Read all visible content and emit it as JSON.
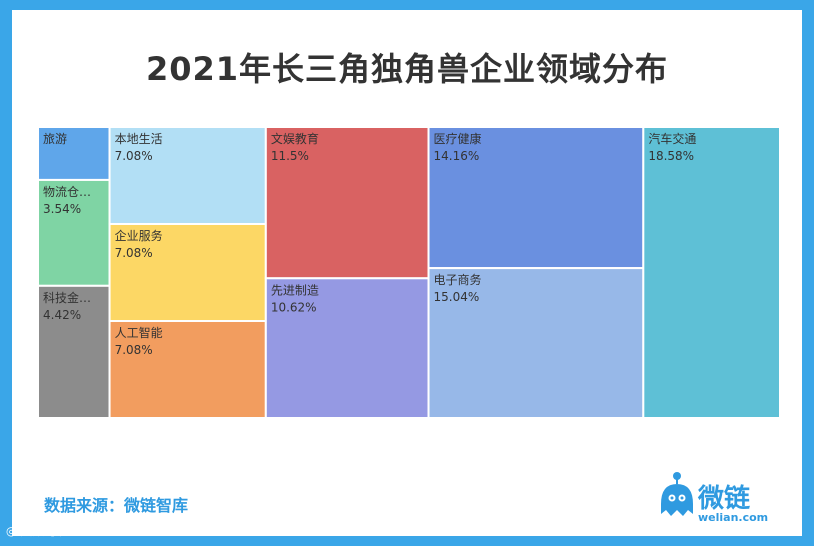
{
  "title": "2021年长三角独角兽企业领域分布",
  "source": "数据来源：微链智库",
  "logo": {
    "name": "微链",
    "url": "welian.com",
    "icon": "octopus-mascot-icon",
    "color": "#2f9ae0"
  },
  "watermark": {
    "text": "大数跨境",
    "icon": "weibo-icon"
  },
  "chart_data": {
    "type": "treemap",
    "title": "2021年长三角独角兽企业领域分布",
    "unit": "%",
    "items": [
      {
        "label": "旅游",
        "value_text": "",
        "value": 1.77,
        "color": "#5fa6ea"
      },
      {
        "label": "物流仓…",
        "value_text": "3.54%",
        "value": 3.54,
        "color": "#7fd4a4"
      },
      {
        "label": "科技金…",
        "value_text": "4.42%",
        "value": 4.42,
        "color": "#8c8c8c"
      },
      {
        "label": "本地生活",
        "value_text": "7.08%",
        "value": 7.08,
        "color": "#b2dff5"
      },
      {
        "label": "企业服务",
        "value_text": "7.08%",
        "value": 7.08,
        "color": "#fcd765"
      },
      {
        "label": "人工智能",
        "value_text": "7.08%",
        "value": 7.08,
        "color": "#f29d5f"
      },
      {
        "label": "文娱教育",
        "value_text": "11.5%",
        "value": 11.5,
        "color": "#d96262"
      },
      {
        "label": "先进制造",
        "value_text": "10.62%",
        "value": 10.62,
        "color": "#9599e3"
      },
      {
        "label": "医疗健康",
        "value_text": "14.16%",
        "value": 14.16,
        "color": "#6a90e0"
      },
      {
        "label": "电子商务",
        "value_text": "15.04%",
        "value": 15.04,
        "color": "#97b8e8"
      },
      {
        "label": "汽车交通",
        "value_text": "18.58%",
        "value": 18.58,
        "color": "#5ec0d6"
      }
    ]
  }
}
